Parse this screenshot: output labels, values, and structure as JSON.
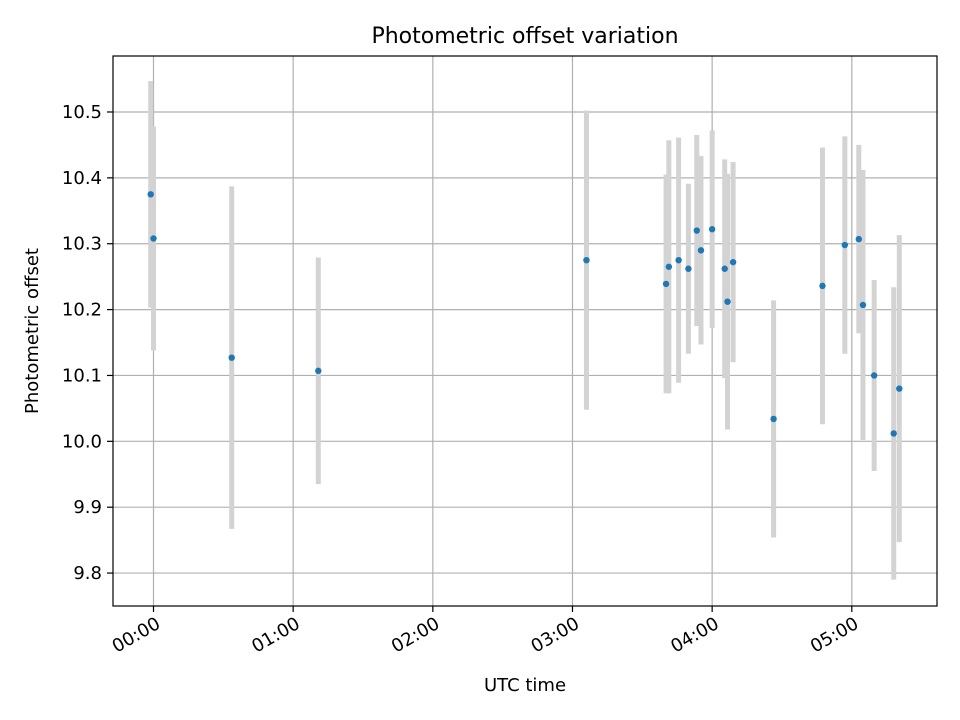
{
  "chart_data": {
    "type": "scatter",
    "title": "Photometric offset variation",
    "xlabel": "UTC time",
    "ylabel": "Photometric offset",
    "x_unit": "hours UTC",
    "xlim": [
      -0.29,
      5.61
    ],
    "ylim": [
      9.75,
      10.585
    ],
    "grid": true,
    "x_ticks": [
      {
        "value": 0,
        "label": "00:00"
      },
      {
        "value": 1,
        "label": "01:00"
      },
      {
        "value": 2,
        "label": "02:00"
      },
      {
        "value": 3,
        "label": "03:00"
      },
      {
        "value": 4,
        "label": "04:00"
      },
      {
        "value": 5,
        "label": "05:00"
      }
    ],
    "y_ticks": [
      {
        "value": 9.8,
        "label": "9.8"
      },
      {
        "value": 9.9,
        "label": "9.9"
      },
      {
        "value": 10.0,
        "label": "10.0"
      },
      {
        "value": 10.1,
        "label": "10.1"
      },
      {
        "value": 10.2,
        "label": "10.2"
      },
      {
        "value": 10.3,
        "label": "10.3"
      },
      {
        "value": 10.4,
        "label": "10.4"
      },
      {
        "value": 10.5,
        "label": "10.5"
      }
    ],
    "point_color": "#1f77b4",
    "errorbar_color": "#d3d3d3",
    "points": [
      {
        "x": -0.02,
        "y": 10.375,
        "err": 0.172
      },
      {
        "x": 0.0,
        "y": 10.308,
        "err": 0.17
      },
      {
        "x": 0.56,
        "y": 10.127,
        "err": 0.26
      },
      {
        "x": 1.18,
        "y": 10.107,
        "err": 0.172
      },
      {
        "x": 3.1,
        "y": 10.275,
        "err": 0.227
      },
      {
        "x": 3.67,
        "y": 10.239,
        "err": 0.166
      },
      {
        "x": 3.69,
        "y": 10.265,
        "err": 0.192
      },
      {
        "x": 3.76,
        "y": 10.275,
        "err": 0.186
      },
      {
        "x": 3.83,
        "y": 10.262,
        "err": 0.129
      },
      {
        "x": 3.89,
        "y": 10.32,
        "err": 0.145
      },
      {
        "x": 3.92,
        "y": 10.29,
        "err": 0.143
      },
      {
        "x": 4.0,
        "y": 10.322,
        "err": 0.15
      },
      {
        "x": 4.09,
        "y": 10.262,
        "err": 0.166
      },
      {
        "x": 4.11,
        "y": 10.212,
        "err": 0.194
      },
      {
        "x": 4.15,
        "y": 10.272,
        "err": 0.152
      },
      {
        "x": 4.44,
        "y": 10.034,
        "err": 0.18
      },
      {
        "x": 4.79,
        "y": 10.236,
        "err": 0.21
      },
      {
        "x": 4.95,
        "y": 10.298,
        "err": 0.165
      },
      {
        "x": 5.05,
        "y": 10.307,
        "err": 0.143
      },
      {
        "x": 5.08,
        "y": 10.207,
        "err": 0.205
      },
      {
        "x": 5.16,
        "y": 10.1,
        "err": 0.145
      },
      {
        "x": 5.3,
        "y": 10.012,
        "err": 0.222
      },
      {
        "x": 5.34,
        "y": 10.08,
        "err": 0.233
      }
    ]
  }
}
